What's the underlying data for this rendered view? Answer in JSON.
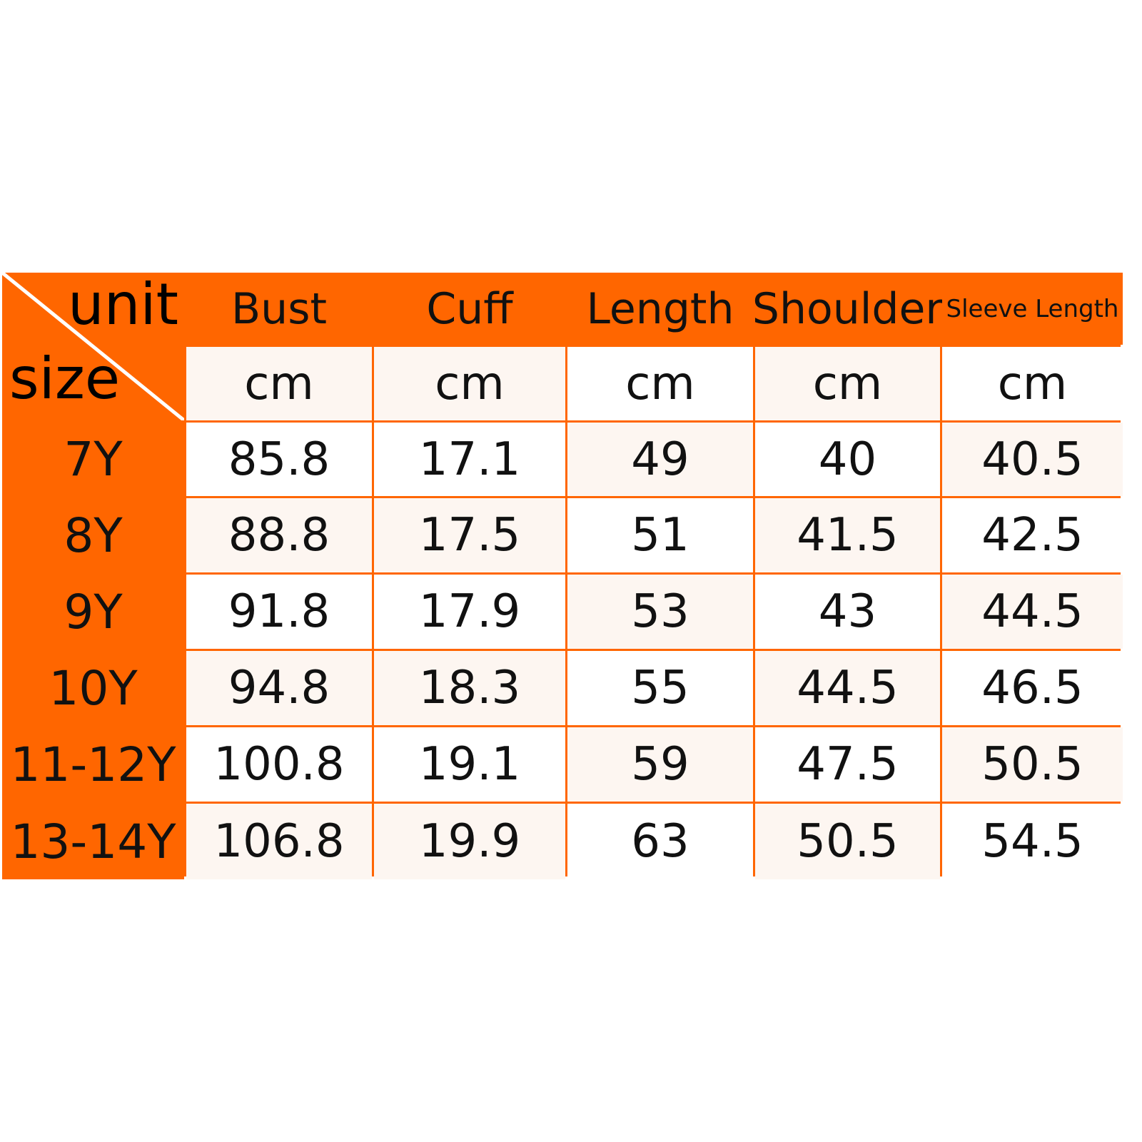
{
  "colors": {
    "header": "#ff6600",
    "border": "#ff6600",
    "cell_light": "#fdf6f1",
    "cell_white": "#ffffff"
  },
  "corner": {
    "top": "unit",
    "bottom": "size"
  },
  "columns": [
    "Bust",
    "Cuff",
    "Length",
    "Shoulder",
    "Sleeve Length"
  ],
  "units": [
    "cm",
    "cm",
    "cm",
    "cm",
    "cm"
  ],
  "rows": [
    {
      "size": "7Y",
      "values": [
        "85.8",
        "17.1",
        "49",
        "40",
        "40.5"
      ]
    },
    {
      "size": "8Y",
      "values": [
        "88.8",
        "17.5",
        "51",
        "41.5",
        "42.5"
      ]
    },
    {
      "size": "9Y",
      "values": [
        "91.8",
        "17.9",
        "53",
        "43",
        "44.5"
      ]
    },
    {
      "size": "10Y",
      "values": [
        "94.8",
        "18.3",
        "55",
        "44.5",
        "46.5"
      ]
    },
    {
      "size": "11-12Y",
      "values": [
        "100.8",
        "19.1",
        "59",
        "47.5",
        "50.5"
      ]
    },
    {
      "size": "13-14Y",
      "values": [
        "106.8",
        "19.9",
        "63",
        "50.5",
        "54.5"
      ]
    }
  ]
}
